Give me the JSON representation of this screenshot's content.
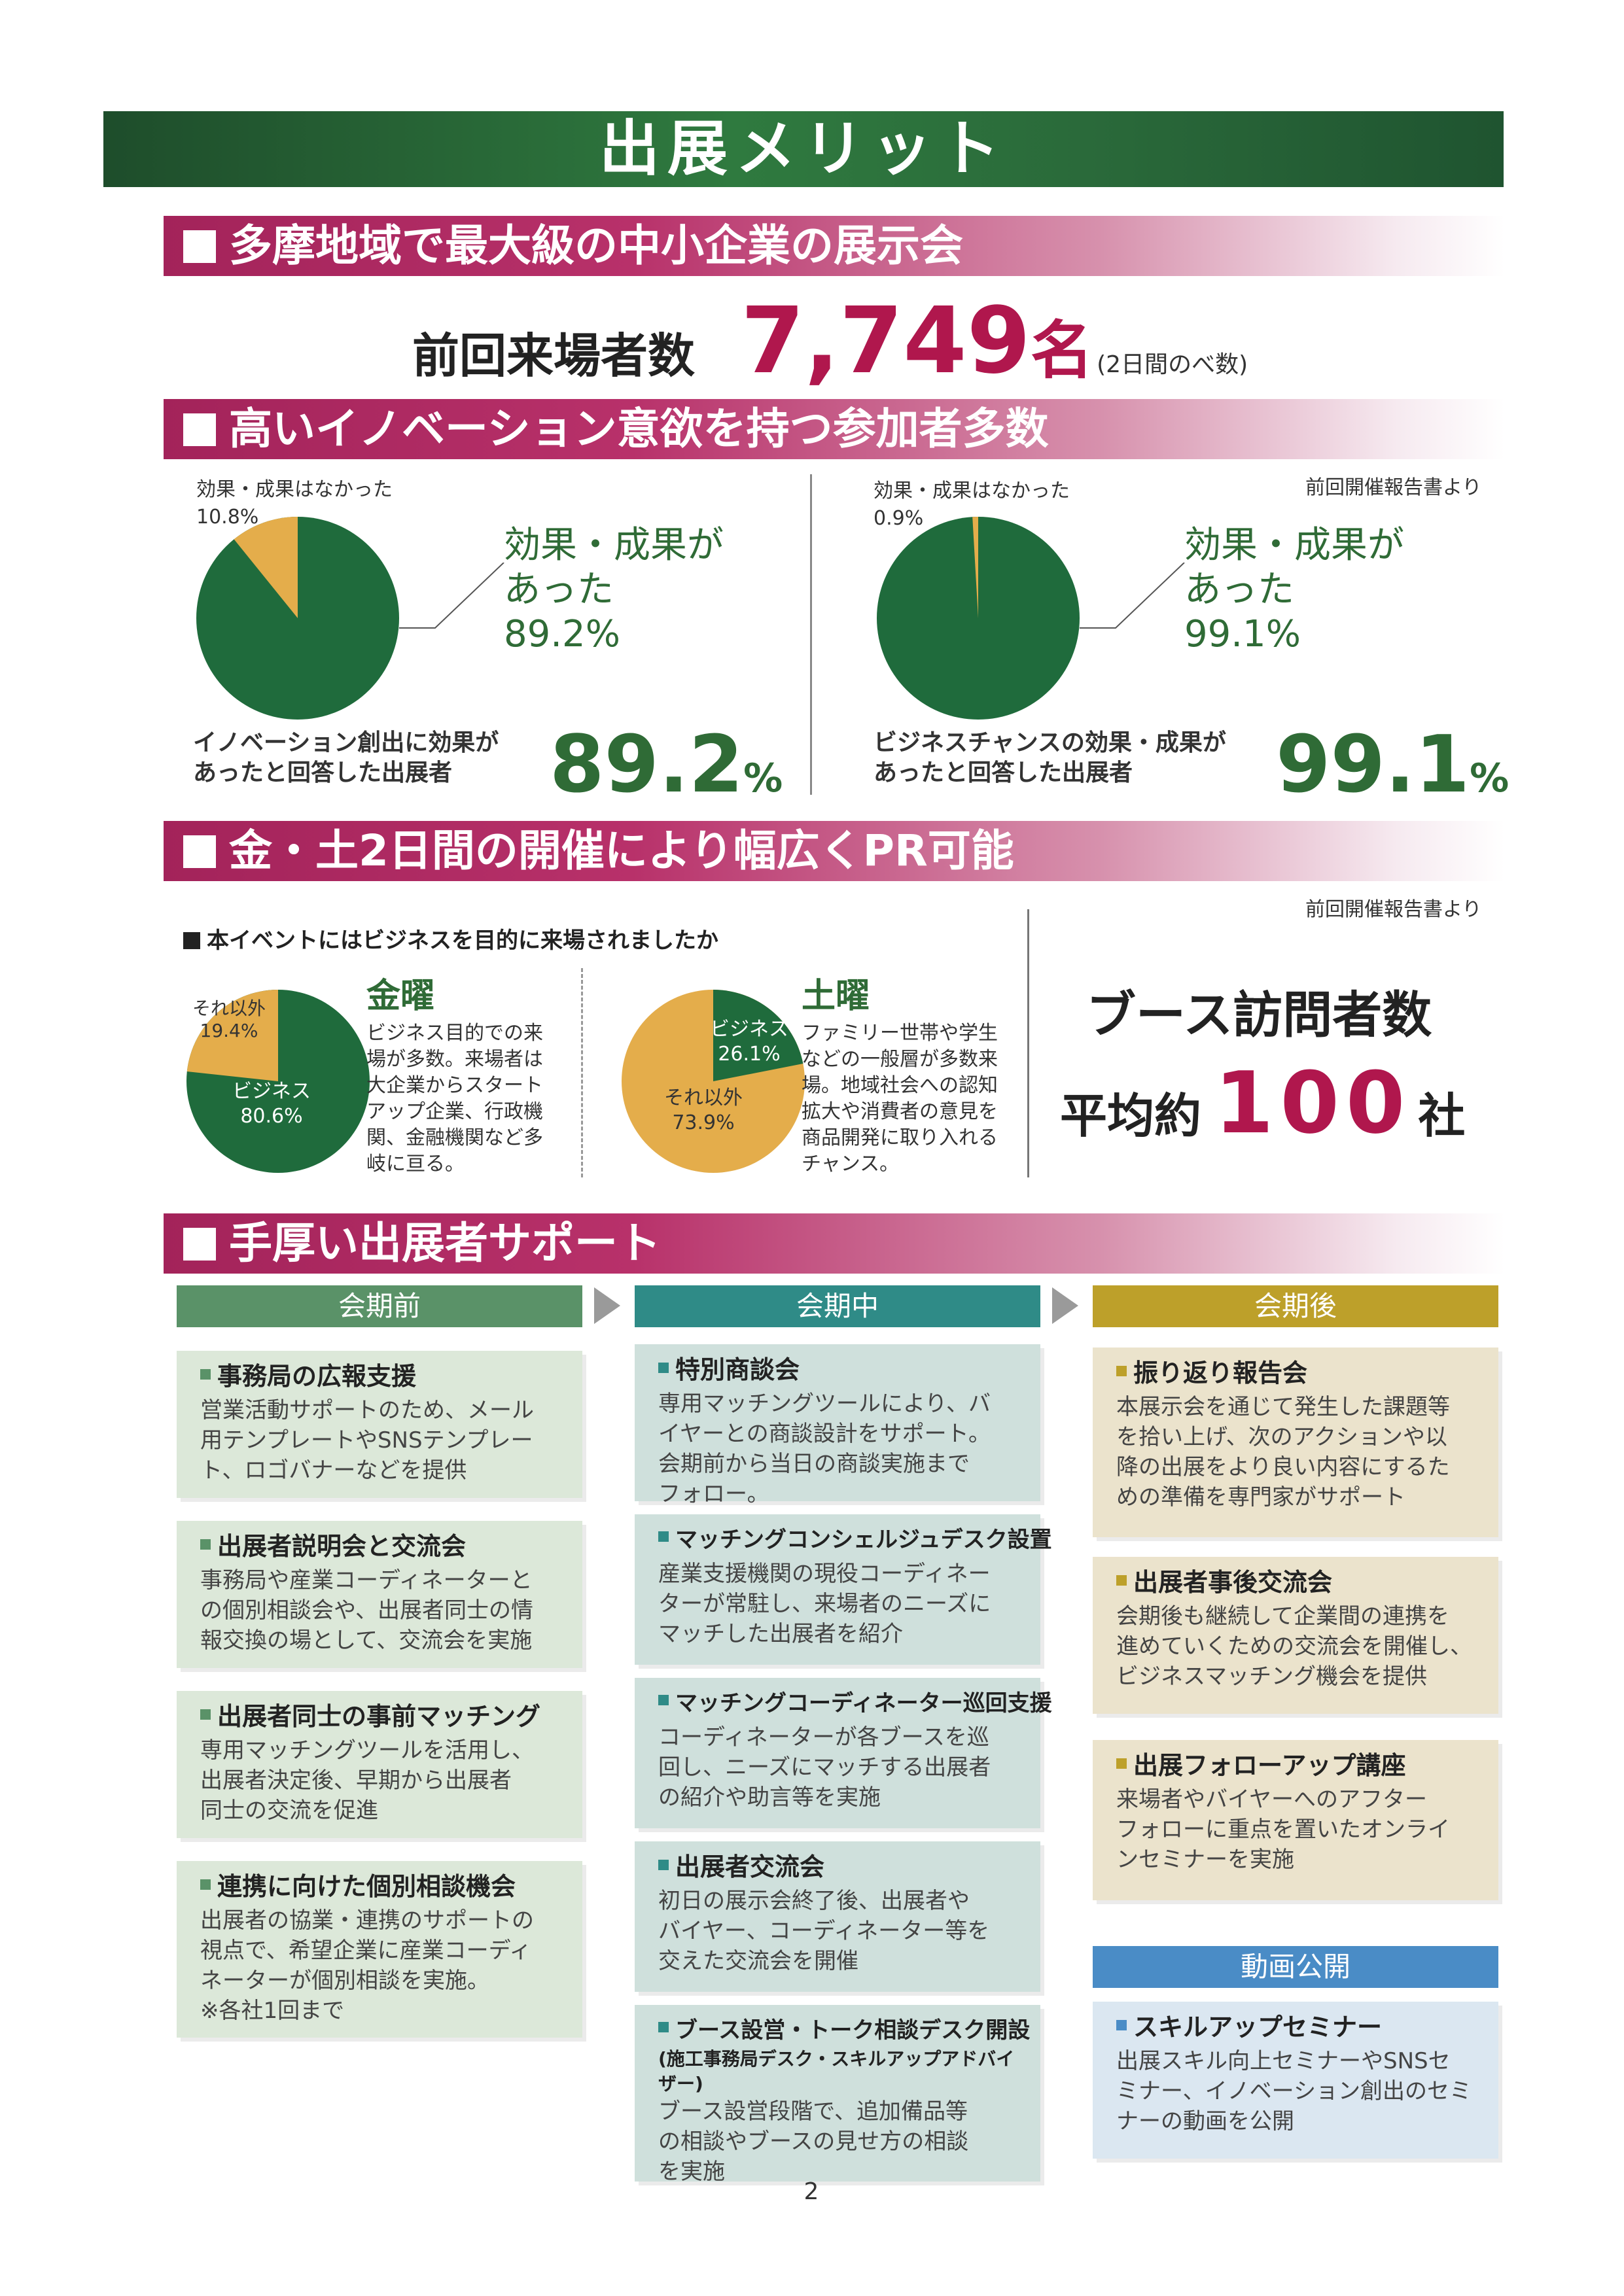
{
  "main_title": "出展メリット",
  "section1": {
    "title": "多摩地域で最大級の中小企業の展示会",
    "visitors_label": "前回来場者数",
    "visitors_value": "7,749",
    "visitors_unit": "名",
    "visitors_note": "(2日間のべ数)"
  },
  "section2": {
    "title": "高いイノベーション意欲を持つ参加者多数",
    "source": "前回開催報告書より",
    "left": {
      "no_label": "効果・成果はなかった",
      "no_value": "10.8%",
      "yes_line1": "効果・成果が",
      "yes_line2": "あった",
      "yes_value": "89.2%",
      "caption_line1": "イノベーション創出に効果が",
      "caption_line2": "あったと回答した出展者",
      "big_number": "89.2",
      "big_unit": "%"
    },
    "right": {
      "no_label": "効果・成果はなかった",
      "no_value": "0.9%",
      "yes_line1": "効果・成果が",
      "yes_line2": "あった",
      "yes_value": "99.1%",
      "caption_line1": "ビジネスチャンスの効果・成果が",
      "caption_line2": "あったと回答した出展者",
      "big_number": "99.1",
      "big_unit": "%"
    }
  },
  "section3": {
    "title": "金・土2日間の開催により幅広くPR可能",
    "source": "前回開催報告書より",
    "question": "本イベントにはビジネスを目的に来場されましたか",
    "friday": {
      "day": "金曜",
      "other_label": "それ以外",
      "other_value": "19.4%",
      "biz_label": "ビジネス",
      "biz_value": "80.6%",
      "desc": [
        "ビジネス目的での来",
        "場が多数。来場者は",
        "大企業からスタート",
        "アップ企業、行政機",
        "関、金融機関など多",
        "岐に亘る。"
      ]
    },
    "saturday": {
      "day": "土曜",
      "biz_label": "ビジネス",
      "biz_value": "26.1%",
      "other_label": "それ以外",
      "other_value": "73.9%",
      "desc": [
        "ファミリー世帯や学生",
        "などの一般層が多数来",
        "場。地域社会への認知",
        "拡大や消費者の意見を",
        "商品開発に取り入れる",
        "チャンス。"
      ]
    },
    "booth_label": "ブース訪問者数",
    "avg_label": "平均約",
    "avg_value": "100",
    "avg_unit": "社"
  },
  "section4": {
    "title": "手厚い出展者サポート",
    "before": {
      "head": "会期前",
      "items": [
        {
          "title": "事務局の広報支援",
          "body": [
            "営業活動サポートのため、メール",
            "用テンプレートやSNSテンプレー",
            "ト、ロゴバナーなどを提供"
          ]
        },
        {
          "title": "出展者説明会と交流会",
          "body": [
            "事務局や産業コーディネーターと",
            "の個別相談会や、出展者同士の情",
            "報交換の場として、交流会を実施"
          ]
        },
        {
          "title": "出展者同士の事前マッチング",
          "body": [
            "専用マッチングツールを活用し、",
            "出展者決定後、早期から出展者",
            "同士の交流を促進"
          ]
        },
        {
          "title": "連携に向けた個別相談機会",
          "body": [
            "出展者の協業・連携のサポートの",
            "視点で、希望企業に産業コーディ",
            "ネーターが個別相談を実施。",
            "※各社1回まで"
          ]
        }
      ]
    },
    "during": {
      "head": "会期中",
      "items": [
        {
          "title": "特別商談会",
          "body": [
            "専用マッチングツールにより、バ",
            "イヤーとの商談設計をサポート。",
            "会期前から当日の商談実施まで",
            "フォロー。"
          ]
        },
        {
          "title": "マッチングコンシェルジュデスク設置",
          "body": [
            "産業支援機関の現役コーディネー",
            "ターが常駐し、来場者のニーズに",
            "マッチした出展者を紹介"
          ]
        },
        {
          "title": "マッチングコーディネーター巡回支援",
          "body": [
            "コーディネーターが各ブースを巡",
            "回し、ニーズにマッチする出展者",
            "の紹介や助言等を実施"
          ]
        },
        {
          "title": "出展者交流会",
          "body": [
            "初日の展示会終了後、出展者や",
            "バイヤー、コーディネーター等を",
            "交えた交流会を開催"
          ]
        },
        {
          "title": "ブース設営・トーク相談デスク開設",
          "sub": "(施工事務局デスク・スキルアップアドバイザー)",
          "body": [
            "ブース設営段階で、追加備品等",
            "の相談やブースの見せ方の相談",
            "を実施"
          ]
        }
      ]
    },
    "after": {
      "head": "会期後",
      "items": [
        {
          "title": "振り返り報告会",
          "body": [
            "本展示会を通じて発生した課題等",
            "を拾い上げ、次のアクションや以",
            "降の出展をより良い内容にするた",
            "めの準備を専門家がサポート"
          ]
        },
        {
          "title": "出展者事後交流会",
          "body": [
            "会期後も継続して企業間の連携を",
            "進めていくための交流会を開催し、",
            "ビジネスマッチング機会を提供"
          ]
        },
        {
          "title": "出展フォローアップ講座",
          "body": [
            "来場者やバイヤーへのアフター",
            "フォローに重点を置いたオンライ",
            "ンセミナーを実施"
          ]
        }
      ]
    },
    "video": {
      "head": "動画公開",
      "item": {
        "title": "スキルアップセミナー",
        "body": [
          "出展スキル向上セミナーやSNSセ",
          "ミナー、イノベーション創出のセミ",
          "ナーの動画を公開"
        ]
      }
    }
  },
  "page_number": "2",
  "colors": {
    "green": "#1f6b3c",
    "pie_yellow": "#e4ad4b",
    "magenta": "#a3235a",
    "col_green": "#5a9268",
    "col_teal": "#2f8b87",
    "col_gold": "#bda02a",
    "col_blue": "#4a8cc6"
  }
}
